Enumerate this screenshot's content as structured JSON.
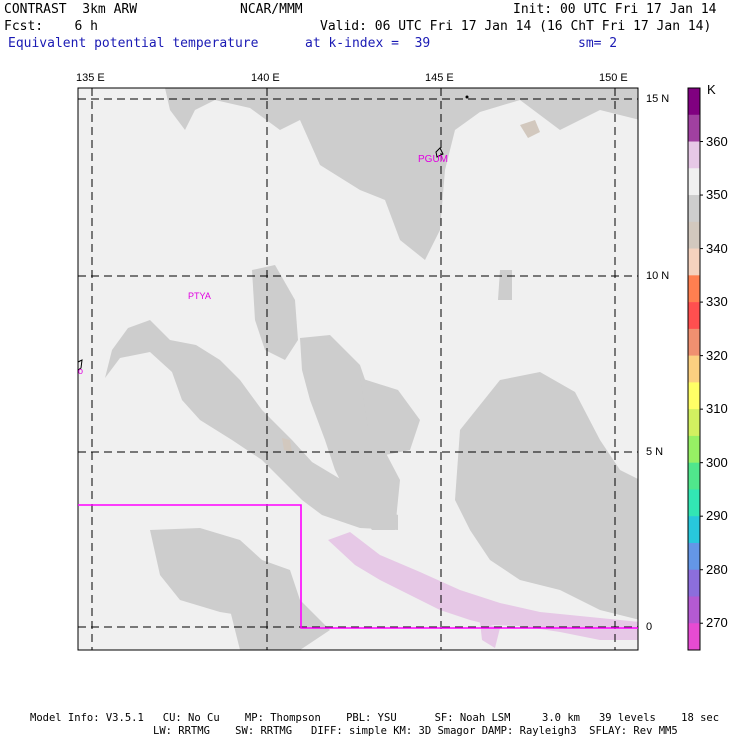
{
  "header": {
    "model": "CONTRAST  3km ARW",
    "org": "NCAR/MMM",
    "init": "Init: 00 UTC Fri 17 Jan 14",
    "fcst": "Fcst:    6 h",
    "valid": "Valid: 06 UTC Fri 17 Jan 14 (16 ChT Fri 17 Jan 14)",
    "field": "Equivalent potential temperature",
    "level": "at k-index =  39",
    "smooth": "sm= 2"
  },
  "map": {
    "lon_labels": [
      "135 E",
      "140 E",
      "145 E",
      "150 E"
    ],
    "lat_labels": [
      "15 N",
      "10 N",
      "5 N",
      "0"
    ],
    "places": [
      "PGUM",
      "PTYA"
    ],
    "colors": {
      "background": "#f0f0f0",
      "band_350": "#cdcdcd",
      "band_355": "#d2c8be",
      "band_345": "#e6b9aa",
      "band_270": "#e6c8e6",
      "boundary": "#ff00ff"
    }
  },
  "colorbar": {
    "unit": "K",
    "labels": [
      "360",
      "350",
      "340",
      "330",
      "320",
      "310",
      "300",
      "290",
      "280",
      "270"
    ],
    "colors": [
      "#800080",
      "#a040a0",
      "#e6c8e6",
      "#f0f0f0",
      "#cdcdcd",
      "#d2c8be",
      "#f5d2be",
      "#ff7f50",
      "#ff4f4f",
      "#f09070",
      "#fcd080",
      "#ffff66",
      "#d2f060",
      "#96f064",
      "#50e68c",
      "#32e6b4",
      "#28c8dc",
      "#6496e6",
      "#8c6edc",
      "#b45ad2",
      "#e64bd2"
    ]
  },
  "footer": {
    "line1": "Model Info: V3.5.1   CU: No Cu    MP: Thompson    PBL: YSU      SF: Noah LSM     3.0 km   39 levels    18 sec",
    "line2": "LW: RRTMG    SW: RRTMG   DIFF: simple KM: 3D Smagor DAMP: Rayleigh3  SFLAY: Rev MM5"
  }
}
